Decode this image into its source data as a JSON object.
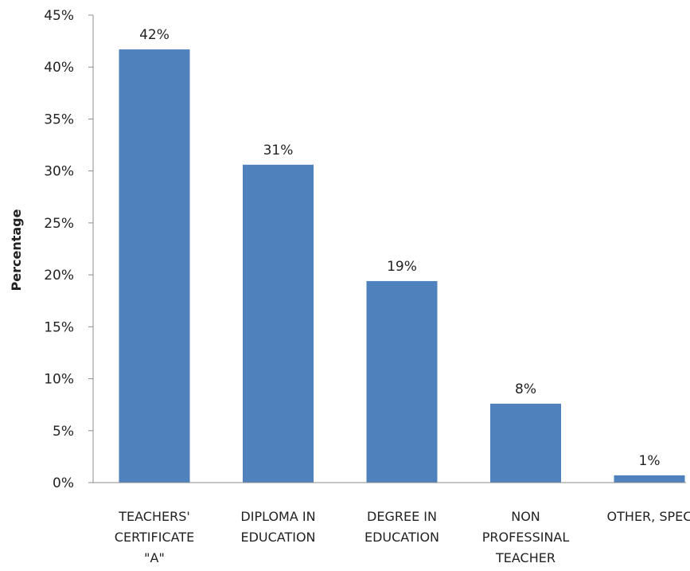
{
  "colors": {
    "bar": "#4F81BD",
    "axis": "#8c8c8c",
    "text": "#222222"
  },
  "chart_data": {
    "type": "bar",
    "title": "",
    "xlabel": "",
    "ylabel": "Percentage",
    "categories": [
      "TEACHERS' CERTIFICATE \"A\"",
      "DIPLOMA IN EDUCATION",
      "DEGREE IN EDUCATION",
      "NON PROFESSINAL TEACHER",
      "OTHER, SPEC"
    ],
    "category_lines": [
      [
        "TEACHERS'",
        "CERTIFICATE",
        "\"A\""
      ],
      [
        "DIPLOMA IN",
        "EDUCATION"
      ],
      [
        "DEGREE IN",
        "EDUCATION"
      ],
      [
        "NON",
        "PROFESSINAL",
        "TEACHER"
      ],
      [
        "OTHER, SPEC"
      ]
    ],
    "values": [
      41.7,
      30.6,
      19.4,
      7.6,
      0.7
    ],
    "data_labels": [
      "42%",
      "31%",
      "19%",
      "8%",
      "1%"
    ],
    "ylim": [
      0,
      45
    ],
    "yticks": [
      0,
      5,
      10,
      15,
      20,
      25,
      30,
      35,
      40,
      45
    ],
    "ytick_labels": [
      "0%",
      "5%",
      "10%",
      "15%",
      "20%",
      "25%",
      "30%",
      "35%",
      "40%",
      "45%"
    ],
    "grid": false,
    "legend": "none"
  }
}
